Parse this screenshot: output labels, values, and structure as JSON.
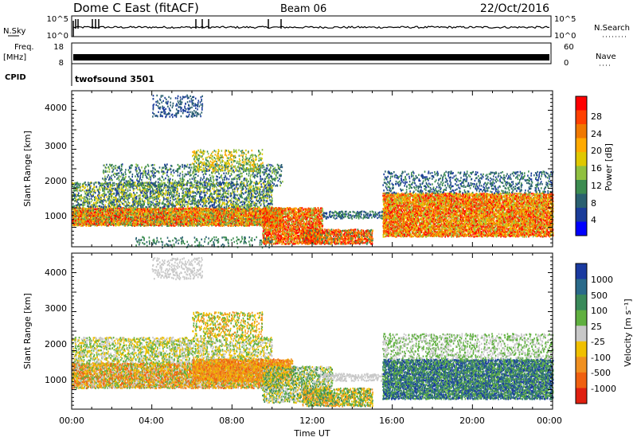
{
  "header": {
    "radar": "Dome C East (fitACF)",
    "beam": "Beam 06",
    "date": "22/Oct/2016"
  },
  "strips": {
    "nsky": {
      "label": "N.Sky",
      "ticks": [
        "10^5",
        "10^0"
      ]
    },
    "nsearch": {
      "label": "N.Search",
      "ticks": [
        "10^5",
        "10^0"
      ]
    },
    "freq": {
      "label_line1": "Freq.",
      "label_line2": "[MHz]",
      "ticks": [
        "18",
        "8"
      ]
    },
    "nave": {
      "label": "Nave",
      "ticks": [
        "60",
        "0"
      ]
    },
    "cpid": {
      "label": "CPID",
      "value": "twofsound 3501"
    }
  },
  "chart_data": [
    {
      "type": "heatmap",
      "name": "power",
      "ylabel": "Slant Range [km]",
      "yticks": [
        "4000",
        "3000",
        "2000",
        "1000"
      ],
      "ylim": [
        200,
        4500
      ],
      "xlim": [
        0,
        24
      ],
      "colorbar": {
        "label": "Power [dB]",
        "ticks": [
          "28",
          "24",
          "20",
          "16",
          "12",
          "8",
          "4"
        ],
        "colors": [
          "#ff0000",
          "#ff4000",
          "#f07800",
          "#ffaa00",
          "#e0c800",
          "#90c040",
          "#3c8c50",
          "#2a6070",
          "#1a3c9a",
          "#0000ff"
        ]
      }
    },
    {
      "type": "heatmap",
      "name": "velocity",
      "ylabel": "Slant Range [km]",
      "yticks": [
        "4000",
        "3000",
        "2000",
        "1000"
      ],
      "ylim": [
        200,
        4500
      ],
      "xlim": [
        0,
        24
      ],
      "xticks": [
        "00:00",
        "04:00",
        "08:00",
        "12:00",
        "16:00",
        "20:00",
        "00:00"
      ],
      "xlabel": "Time UT",
      "colorbar": {
        "label": "Velocity [m s⁻¹]",
        "ticks": [
          "1000",
          "500",
          "100",
          "25",
          "-25",
          "-100",
          "-500",
          "-1000"
        ],
        "colors": [
          "#1a3aa0",
          "#2a6a8a",
          "#3a8a5a",
          "#60b040",
          "#c8c8c8",
          "#f0c000",
          "#f09020",
          "#f06010",
          "#e02010"
        ]
      }
    }
  ]
}
